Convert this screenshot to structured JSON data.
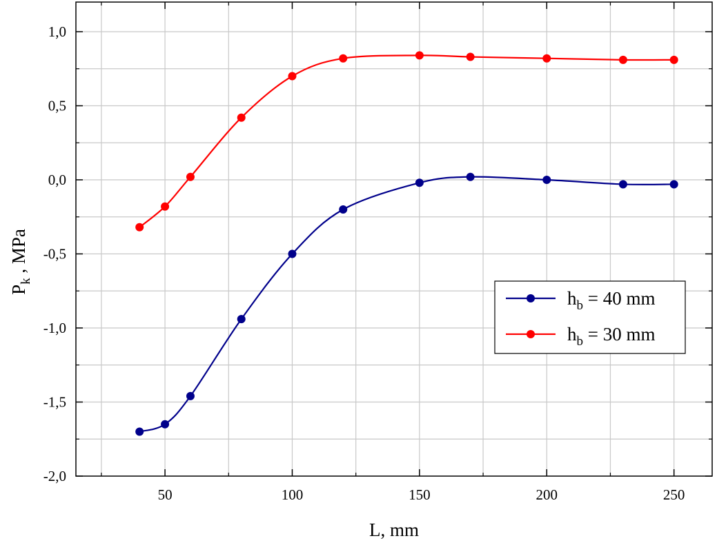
{
  "chart_data": {
    "type": "line",
    "xlabel": "L, mm",
    "ylabel_main": "P",
    "ylabel_sub": "k",
    "ylabel_rest": " , MPa",
    "xlim": [
      15,
      265
    ],
    "ylim": [
      -2.0,
      1.2
    ],
    "xticks": [
      50,
      100,
      150,
      200,
      250
    ],
    "xtick_labels": [
      "50",
      "100",
      "150",
      "200",
      "250"
    ],
    "yticks": [
      -2.0,
      -1.5,
      -1.0,
      -0.5,
      0.0,
      0.5,
      1.0
    ],
    "ytick_labels": [
      "-2,0",
      "-1,5",
      "-1,0",
      "-0,5",
      "0,0",
      "0,5",
      "1,0"
    ],
    "grid": true,
    "legend_position": "right",
    "series": [
      {
        "name_main": "h",
        "name_sub": "b",
        "name_rest": " = 40 mm",
        "color": "#00008B",
        "x": [
          40,
          50,
          60,
          80,
          100,
          120,
          150,
          170,
          200,
          230,
          250
        ],
        "y": [
          -1.7,
          -1.65,
          -1.46,
          -0.94,
          -0.5,
          -0.2,
          -0.02,
          0.02,
          0.0,
          -0.03,
          -0.03
        ]
      },
      {
        "name_main": "h",
        "name_sub": "b",
        "name_rest": " = 30 mm",
        "color": "#FF0000",
        "x": [
          40,
          50,
          60,
          80,
          100,
          120,
          150,
          170,
          200,
          230,
          250
        ],
        "y": [
          -0.32,
          -0.18,
          0.02,
          0.42,
          0.7,
          0.82,
          0.84,
          0.83,
          0.82,
          0.81,
          0.81
        ]
      }
    ]
  }
}
